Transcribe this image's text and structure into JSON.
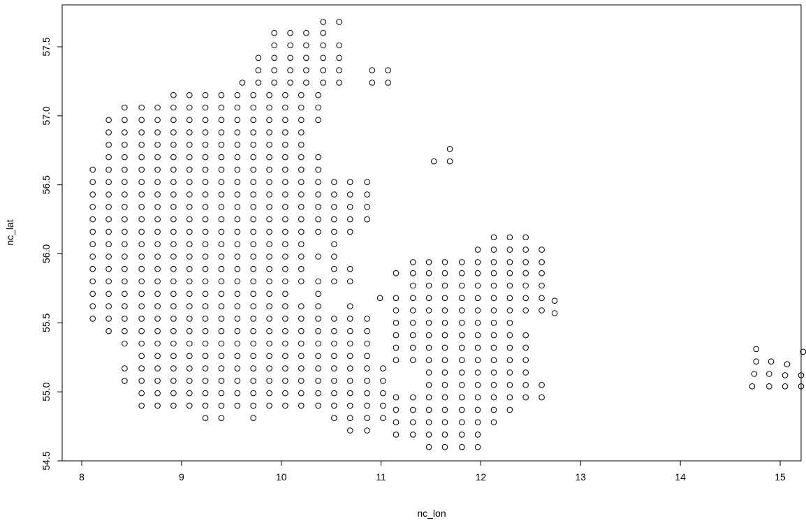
{
  "chart_data": {
    "type": "scatter",
    "title": "",
    "xlabel": "nc_lon",
    "ylabel": "nc_lat",
    "xlim": [
      7.95,
      15.3
    ],
    "ylim": [
      54.5,
      57.75
    ],
    "xticks": [
      8,
      9,
      10,
      11,
      12,
      13,
      14,
      15
    ],
    "yticks": [
      54.5,
      55.0,
      55.5,
      56.0,
      56.5,
      57.0,
      57.5
    ],
    "xtick_labels": [
      "8",
      "9",
      "10",
      "11",
      "12",
      "13",
      "14",
      "15"
    ],
    "ytick_labels": [
      "54.5",
      "55.0",
      "55.5",
      "56.0",
      "56.5",
      "57.0",
      "57.5"
    ],
    "grid": false,
    "marker": "open-circle",
    "rows": [
      {
        "y": 57.68,
        "x": [
          10.42,
          10.58
        ]
      },
      {
        "y": 57.6,
        "x": [
          9.93,
          10.09,
          10.25,
          10.42
        ]
      },
      {
        "y": 57.51,
        "x": [
          9.93,
          10.09,
          10.25,
          10.42,
          10.58
        ]
      },
      {
        "y": 57.42,
        "x": [
          9.77,
          9.93,
          10.09,
          10.25,
          10.42,
          10.58
        ]
      },
      {
        "y": 57.33,
        "x": [
          9.77,
          9.93,
          10.09,
          10.25,
          10.42,
          10.58,
          10.91,
          11.07
        ]
      },
      {
        "y": 57.24,
        "x": [
          9.61,
          9.77,
          9.93,
          10.09,
          10.25,
          10.42,
          10.58,
          10.91,
          11.07
        ]
      },
      {
        "y": 57.15,
        "x": [
          8.92,
          9.08,
          9.24,
          9.4,
          9.56,
          9.72,
          9.88,
          10.04,
          10.2,
          10.37
        ]
      },
      {
        "y": 57.06,
        "x": [
          8.43,
          8.6,
          8.76,
          8.92,
          9.08,
          9.24,
          9.4,
          9.56,
          9.72,
          9.88,
          10.04,
          10.2,
          10.37
        ]
      },
      {
        "y": 56.97,
        "x": [
          8.27,
          8.43,
          8.6,
          8.76,
          8.92,
          9.08,
          9.24,
          9.4,
          9.56,
          9.72,
          9.88,
          10.04,
          10.2,
          10.37
        ]
      },
      {
        "y": 56.88,
        "x": [
          8.27,
          8.43,
          8.6,
          8.76,
          8.92,
          9.08,
          9.24,
          9.4,
          9.56,
          9.72,
          9.88,
          10.04,
          10.2
        ]
      },
      {
        "y": 56.79,
        "x": [
          8.27,
          8.43,
          8.6,
          8.76,
          8.92,
          9.08,
          9.24,
          9.4,
          9.56,
          9.72,
          9.88,
          10.04,
          10.2
        ]
      },
      {
        "y": 56.76,
        "x": [
          11.69
        ]
      },
      {
        "y": 56.7,
        "x": [
          8.27,
          8.43,
          8.6,
          8.76,
          8.92,
          9.08,
          9.24,
          9.4,
          9.56,
          9.72,
          9.88,
          10.04,
          10.2,
          10.37
        ]
      },
      {
        "y": 56.67,
        "x": [
          11.53,
          11.69
        ]
      },
      {
        "y": 56.61,
        "x": [
          8.11,
          8.27,
          8.43,
          8.6,
          8.76,
          8.92,
          9.08,
          9.24,
          9.4,
          9.56,
          9.72,
          9.88,
          10.04,
          10.2,
          10.37
        ]
      },
      {
        "y": 56.52,
        "x": [
          8.11,
          8.27,
          8.43,
          8.6,
          8.76,
          8.92,
          9.08,
          9.24,
          9.4,
          9.56,
          9.72,
          9.88,
          10.04,
          10.2,
          10.37,
          10.53,
          10.69,
          10.86
        ]
      },
      {
        "y": 56.43,
        "x": [
          8.11,
          8.27,
          8.43,
          8.6,
          8.76,
          8.92,
          9.08,
          9.24,
          9.4,
          9.56,
          9.72,
          9.88,
          10.04,
          10.2,
          10.37,
          10.53,
          10.69,
          10.86
        ]
      },
      {
        "y": 56.34,
        "x": [
          8.11,
          8.27,
          8.43,
          8.6,
          8.76,
          8.92,
          9.08,
          9.24,
          9.4,
          9.56,
          9.72,
          9.88,
          10.04,
          10.2,
          10.37,
          10.53,
          10.69,
          10.86
        ]
      },
      {
        "y": 56.25,
        "x": [
          8.11,
          8.27,
          8.43,
          8.6,
          8.76,
          8.92,
          9.08,
          9.24,
          9.4,
          9.56,
          9.72,
          9.88,
          10.04,
          10.2,
          10.37,
          10.53,
          10.69,
          10.86
        ]
      },
      {
        "y": 56.16,
        "x": [
          8.11,
          8.27,
          8.43,
          8.6,
          8.76,
          8.92,
          9.08,
          9.24,
          9.4,
          9.56,
          9.72,
          9.88,
          10.04,
          10.2,
          10.37,
          10.53,
          10.69
        ]
      },
      {
        "y": 56.12,
        "x": [
          12.13,
          12.29,
          12.45
        ]
      },
      {
        "y": 56.07,
        "x": [
          8.11,
          8.27,
          8.43,
          8.6,
          8.76,
          8.92,
          9.08,
          9.24,
          9.4,
          9.56,
          9.72,
          9.88,
          10.04,
          10.2,
          10.53
        ]
      },
      {
        "y": 56.03,
        "x": [
          11.97,
          12.13,
          12.29,
          12.45,
          12.61
        ]
      },
      {
        "y": 55.98,
        "x": [
          8.11,
          8.27,
          8.43,
          8.6,
          8.76,
          8.92,
          9.08,
          9.24,
          9.4,
          9.56,
          9.72,
          9.88,
          10.04,
          10.2,
          10.37,
          10.53
        ]
      },
      {
        "y": 55.94,
        "x": [
          11.32,
          11.48,
          11.64,
          11.81,
          11.97,
          12.13,
          12.29,
          12.45,
          12.61
        ]
      },
      {
        "y": 55.89,
        "x": [
          8.11,
          8.27,
          8.43,
          8.6,
          8.76,
          8.92,
          9.08,
          9.24,
          9.4,
          9.56,
          9.72,
          9.88,
          10.04,
          10.2,
          10.53,
          10.69
        ]
      },
      {
        "y": 55.86,
        "x": [
          11.15,
          11.32,
          11.48,
          11.64,
          11.81,
          11.97,
          12.13,
          12.29,
          12.45,
          12.61
        ]
      },
      {
        "y": 55.8,
        "x": [
          8.11,
          8.27,
          8.43,
          8.6,
          8.76,
          8.92,
          9.08,
          9.24,
          9.4,
          9.56,
          9.72,
          9.88,
          10.04,
          10.2,
          10.37,
          10.53,
          10.69
        ]
      },
      {
        "y": 55.77,
        "x": [
          11.32,
          11.48,
          11.64,
          11.81,
          11.97,
          12.13,
          12.29,
          12.45,
          12.61
        ]
      },
      {
        "y": 55.71,
        "x": [
          8.11,
          8.27,
          8.43,
          8.6,
          8.76,
          8.92,
          9.08,
          9.24,
          9.4,
          9.56,
          9.72,
          9.88,
          10.04,
          10.37
        ]
      },
      {
        "y": 55.68,
        "x": [
          10.99,
          11.15,
          11.32,
          11.48,
          11.64,
          11.81,
          11.97,
          12.13,
          12.29,
          12.45,
          12.61
        ]
      },
      {
        "y": 55.66,
        "x": [
          12.74
        ]
      },
      {
        "y": 55.62,
        "x": [
          8.11,
          8.27,
          8.43,
          8.6,
          8.76,
          8.92,
          9.08,
          9.24,
          9.4,
          9.56,
          9.72,
          9.88,
          10.04,
          10.2,
          10.37,
          10.69
        ]
      },
      {
        "y": 55.59,
        "x": [
          11.15,
          11.32,
          11.48,
          11.64,
          11.81,
          11.97,
          12.13,
          12.29,
          12.45,
          12.61
        ]
      },
      {
        "y": 55.57,
        "x": [
          12.74
        ]
      },
      {
        "y": 55.53,
        "x": [
          8.11,
          8.27,
          8.43,
          8.6,
          8.76,
          8.92,
          9.08,
          9.24,
          9.4,
          9.56,
          9.72,
          9.88,
          10.04,
          10.2,
          10.37,
          10.53,
          10.69,
          10.86
        ]
      },
      {
        "y": 55.5,
        "x": [
          11.15,
          11.32,
          11.48,
          11.64,
          11.81,
          11.97,
          12.13,
          12.29
        ]
      },
      {
        "y": 55.44,
        "x": [
          8.27,
          8.43,
          8.6,
          8.76,
          8.92,
          9.08,
          9.24,
          9.4,
          9.56,
          9.72,
          9.88,
          10.04,
          10.2,
          10.37,
          10.53,
          10.69,
          10.86
        ]
      },
      {
        "y": 55.41,
        "x": [
          11.15,
          11.32,
          11.48,
          11.64,
          11.81,
          11.97,
          12.13,
          12.29,
          12.45
        ]
      },
      {
        "y": 55.35,
        "x": [
          8.43,
          8.6,
          8.76,
          8.92,
          9.08,
          9.24,
          9.4,
          9.56,
          9.72,
          9.88,
          10.04,
          10.2,
          10.37,
          10.53,
          10.69,
          10.86
        ]
      },
      {
        "y": 55.32,
        "x": [
          11.15,
          11.32,
          11.48,
          11.64,
          11.81,
          11.97,
          12.13,
          12.29,
          12.45
        ]
      },
      {
        "y": 55.31,
        "x": [
          14.76
        ]
      },
      {
        "y": 55.29,
        "x": [
          15.23
        ]
      },
      {
        "y": 55.26,
        "x": [
          8.6,
          8.76,
          8.92,
          9.08,
          9.24,
          9.4,
          9.56,
          9.72,
          9.88,
          10.04,
          10.2,
          10.37,
          10.53,
          10.69,
          10.86
        ]
      },
      {
        "y": 55.23,
        "x": [
          11.15,
          11.32,
          11.48,
          11.64,
          11.81,
          11.97,
          12.13,
          12.29,
          12.45
        ]
      },
      {
        "y": 55.22,
        "x": [
          14.76,
          14.91
        ]
      },
      {
        "y": 55.2,
        "x": [
          15.07
        ]
      },
      {
        "y": 55.17,
        "x": [
          8.43,
          8.6,
          8.76,
          8.92,
          9.08,
          9.24,
          9.4,
          9.56,
          9.72,
          9.88,
          10.04,
          10.2,
          10.37,
          10.53,
          10.69,
          10.86,
          11.02
        ]
      },
      {
        "y": 55.14,
        "x": [
          11.48,
          11.64,
          11.81,
          11.97,
          12.13,
          12.29,
          12.45
        ]
      },
      {
        "y": 55.13,
        "x": [
          14.74,
          14.89
        ]
      },
      {
        "y": 55.12,
        "x": [
          15.05,
          15.21
        ]
      },
      {
        "y": 55.08,
        "x": [
          8.43,
          8.6,
          8.76,
          8.92,
          9.08,
          9.24,
          9.4,
          9.56,
          9.72,
          9.88,
          10.04,
          10.2,
          10.37,
          10.53,
          10.69,
          10.86,
          11.02
        ]
      },
      {
        "y": 55.05,
        "x": [
          11.48,
          11.64,
          11.81,
          11.97,
          12.13,
          12.29,
          12.45,
          12.61
        ]
      },
      {
        "y": 55.04,
        "x": [
          14.72,
          14.89,
          15.05,
          15.21
        ]
      },
      {
        "y": 54.99,
        "x": [
          8.6,
          8.76,
          8.92,
          9.08,
          9.24,
          9.4,
          9.56,
          9.72,
          9.88,
          10.04,
          10.2,
          10.37,
          10.53,
          10.69,
          10.86,
          11.02
        ]
      },
      {
        "y": 54.96,
        "x": [
          11.15,
          11.32,
          11.48,
          11.64,
          11.81,
          11.97,
          12.13,
          12.29,
          12.45,
          12.61
        ]
      },
      {
        "y": 54.9,
        "x": [
          8.6,
          8.76,
          8.92,
          9.08,
          9.24,
          9.4,
          9.56,
          9.72,
          9.88,
          10.04,
          10.2,
          10.37,
          10.53,
          10.69,
          10.86,
          11.02
        ]
      },
      {
        "y": 54.87,
        "x": [
          11.15,
          11.32,
          11.48,
          11.64,
          11.81,
          11.97,
          12.13,
          12.29
        ]
      },
      {
        "y": 54.81,
        "x": [
          9.24,
          9.4,
          9.72,
          10.53,
          10.69,
          10.86,
          11.02
        ]
      },
      {
        "y": 54.78,
        "x": [
          11.15,
          11.32,
          11.48,
          11.64,
          11.81,
          11.97,
          12.13
        ]
      },
      {
        "y": 54.72,
        "x": [
          10.69,
          10.86
        ]
      },
      {
        "y": 54.69,
        "x": [
          11.15,
          11.32,
          11.48,
          11.64,
          11.81,
          11.97
        ]
      },
      {
        "y": 54.6,
        "x": [
          11.48,
          11.64,
          11.81,
          11.97
        ]
      }
    ]
  }
}
